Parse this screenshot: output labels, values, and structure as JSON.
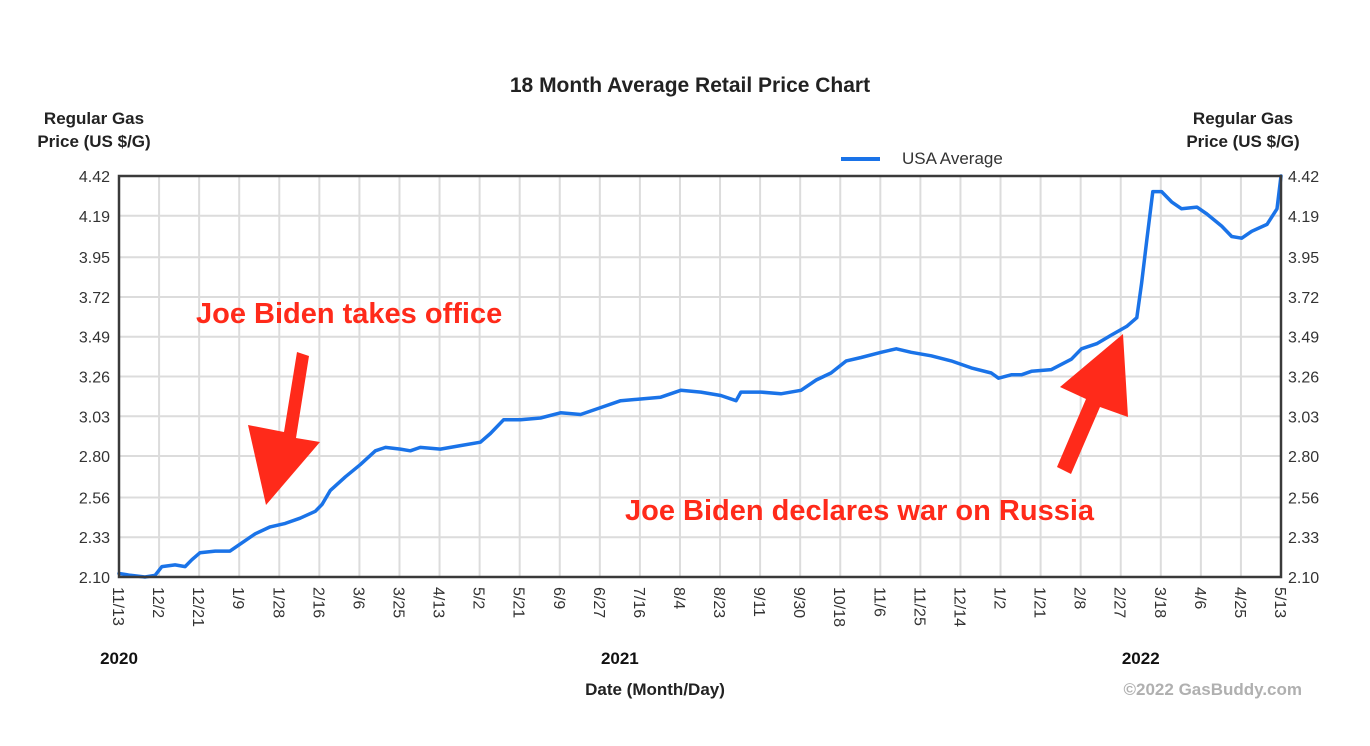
{
  "chart_data": {
    "type": "line",
    "title": "18 Month Average Retail Price Chart",
    "ylabel_left": [
      "Regular Gas",
      "Price (US $/G)"
    ],
    "ylabel_right": [
      "Regular Gas",
      "Price (US $/G)"
    ],
    "xlabel": "Date (Month/Day)",
    "ylim": [
      2.1,
      4.42
    ],
    "y_ticks": [
      "4.42",
      "4.19",
      "3.95",
      "3.72",
      "3.49",
      "3.26",
      "3.03",
      "2.80",
      "2.56",
      "2.33",
      "2.10"
    ],
    "x_ticks": [
      "11/13",
      "12/2",
      "12/21",
      "1/9",
      "1/28",
      "2/16",
      "3/6",
      "3/25",
      "4/13",
      "5/2",
      "5/21",
      "6/9",
      "6/27",
      "7/16",
      "8/4",
      "8/23",
      "9/11",
      "9/30",
      "10/18",
      "11/6",
      "11/25",
      "12/14",
      "1/2",
      "1/21",
      "2/8",
      "2/27",
      "3/18",
      "4/6",
      "4/25",
      "5/13"
    ],
    "year_labels": [
      {
        "label": "2020",
        "at_tick": 0
      },
      {
        "label": "2021",
        "at_tick": 12.5
      },
      {
        "label": "2022",
        "at_tick": 25.5
      }
    ],
    "x_tick_count_intervals": 29,
    "grid": true,
    "legend": {
      "position": "top-right",
      "entries": [
        {
          "name": "USA Average",
          "color": "#1a73e8"
        }
      ]
    },
    "series": [
      {
        "name": "USA Average",
        "color": "#1a73e8",
        "x_unit": "tick index (0 = 11/13/2020, 29 = 5/13/2022)",
        "points": [
          [
            0,
            2.12
          ],
          [
            0.28,
            2.11
          ],
          [
            0.65,
            2.1
          ],
          [
            0.9,
            2.11
          ],
          [
            1.07,
            2.16
          ],
          [
            1.4,
            2.17
          ],
          [
            1.65,
            2.16
          ],
          [
            1.82,
            2.2
          ],
          [
            2.02,
            2.24
          ],
          [
            2.4,
            2.25
          ],
          [
            2.77,
            2.25
          ],
          [
            3.02,
            2.29
          ],
          [
            3.4,
            2.35
          ],
          [
            3.77,
            2.39
          ],
          [
            4.15,
            2.41
          ],
          [
            4.52,
            2.44
          ],
          [
            4.9,
            2.48
          ],
          [
            5.07,
            2.52
          ],
          [
            5.27,
            2.6
          ],
          [
            5.65,
            2.68
          ],
          [
            6.02,
            2.75
          ],
          [
            6.4,
            2.83
          ],
          [
            6.65,
            2.85
          ],
          [
            7.02,
            2.84
          ],
          [
            7.27,
            2.83
          ],
          [
            7.52,
            2.85
          ],
          [
            8.02,
            2.84
          ],
          [
            8.52,
            2.86
          ],
          [
            9.02,
            2.88
          ],
          [
            9.27,
            2.93
          ],
          [
            9.6,
            3.01
          ],
          [
            10.02,
            3.01
          ],
          [
            10.52,
            3.02
          ],
          [
            11.02,
            3.05
          ],
          [
            11.52,
            3.04
          ],
          [
            12.02,
            3.08
          ],
          [
            12.52,
            3.12
          ],
          [
            13.02,
            3.13
          ],
          [
            13.52,
            3.14
          ],
          [
            14.02,
            3.18
          ],
          [
            14.52,
            3.17
          ],
          [
            15.02,
            3.15
          ],
          [
            15.4,
            3.12
          ],
          [
            15.52,
            3.17
          ],
          [
            16.02,
            3.17
          ],
          [
            16.52,
            3.16
          ],
          [
            17.02,
            3.18
          ],
          [
            17.4,
            3.24
          ],
          [
            17.77,
            3.28
          ],
          [
            18.15,
            3.35
          ],
          [
            18.52,
            3.37
          ],
          [
            19.02,
            3.4
          ],
          [
            19.4,
            3.42
          ],
          [
            19.77,
            3.4
          ],
          [
            20.27,
            3.38
          ],
          [
            20.77,
            3.35
          ],
          [
            21.27,
            3.31
          ],
          [
            21.77,
            3.28
          ],
          [
            21.95,
            3.25
          ],
          [
            22.27,
            3.27
          ],
          [
            22.52,
            3.27
          ],
          [
            22.77,
            3.29
          ],
          [
            23.27,
            3.3
          ],
          [
            23.77,
            3.36
          ],
          [
            24.02,
            3.42
          ],
          [
            24.4,
            3.45
          ],
          [
            24.77,
            3.5
          ],
          [
            25.15,
            3.55
          ],
          [
            25.4,
            3.6
          ],
          [
            25.52,
            3.8
          ],
          [
            25.65,
            4.05
          ],
          [
            25.8,
            4.33
          ],
          [
            26.02,
            4.33
          ],
          [
            26.27,
            4.27
          ],
          [
            26.52,
            4.23
          ],
          [
            26.9,
            4.24
          ],
          [
            27.15,
            4.2
          ],
          [
            27.52,
            4.13
          ],
          [
            27.77,
            4.07
          ],
          [
            28.02,
            4.06
          ],
          [
            28.27,
            4.1
          ],
          [
            28.65,
            4.14
          ],
          [
            28.9,
            4.23
          ],
          [
            29.0,
            4.42
          ]
        ]
      }
    ],
    "annotations": [
      {
        "text": "Joe Biden takes office",
        "color": "#ff2a1a",
        "points_to_tick": 3.6
      },
      {
        "text": "Joe Biden declares war on Russia",
        "color": "#ff2a1a",
        "points_to_tick": 25.1
      }
    ],
    "credit": "©2022 GasBuddy.com"
  }
}
